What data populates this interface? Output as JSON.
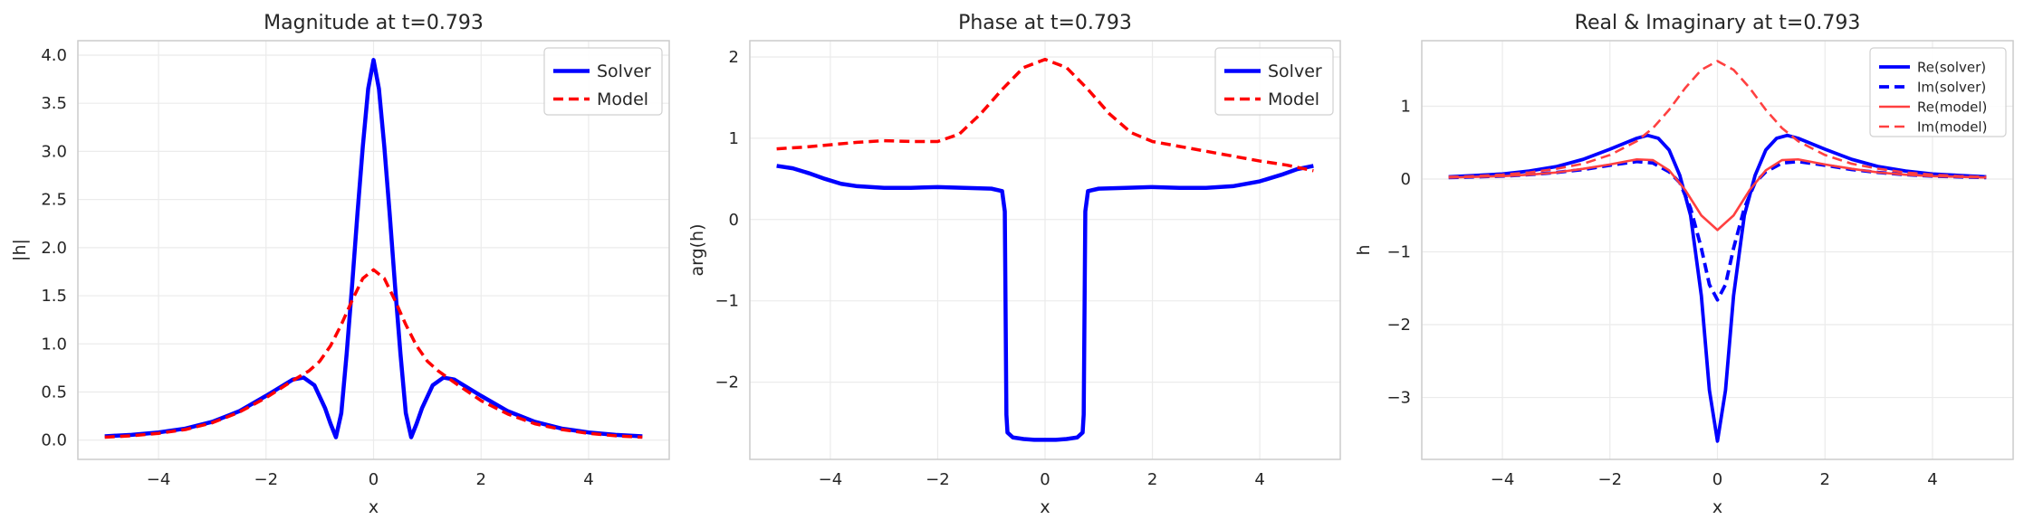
{
  "chart_data": [
    {
      "type": "line",
      "title": "Magnitude at t=0.793",
      "xlabel": "x",
      "ylabel": "|h|",
      "xlim": [
        -5.5,
        5.5
      ],
      "ylim": [
        -0.2,
        4.15
      ],
      "xticks": [
        -4,
        -2,
        0,
        2,
        4
      ],
      "xtick_labels": [
        "−4",
        "−2",
        "0",
        "2",
        "4"
      ],
      "yticks": [
        0.0,
        0.5,
        1.0,
        1.5,
        2.0,
        2.5,
        3.0,
        3.5,
        4.0
      ],
      "ytick_labels": [
        "0.0",
        "0.5",
        "1.0",
        "1.5",
        "2.0",
        "2.5",
        "3.0",
        "3.5",
        "4.0"
      ],
      "grid": true,
      "legend_position": "top-right",
      "series": [
        {
          "name": "Solver",
          "color": "#0000ff",
          "style": "solid",
          "width": 4.5,
          "x": [
            -5,
            -4.5,
            -4,
            -3.5,
            -3,
            -2.5,
            -2,
            -1.5,
            -1.3,
            -1.1,
            -0.9,
            -0.8,
            -0.7,
            -0.6,
            -0.5,
            -0.4,
            -0.3,
            -0.2,
            -0.1,
            0,
            0.1,
            0.2,
            0.3,
            0.4,
            0.5,
            0.6,
            0.7,
            0.8,
            0.9,
            1.1,
            1.3,
            1.5,
            2,
            2.5,
            3,
            3.5,
            4,
            4.5,
            5
          ],
          "y": [
            0.04,
            0.055,
            0.08,
            0.12,
            0.19,
            0.3,
            0.46,
            0.63,
            0.65,
            0.57,
            0.33,
            0.17,
            0.03,
            0.28,
            0.9,
            1.6,
            2.35,
            3.05,
            3.65,
            3.95,
            3.65,
            3.05,
            2.35,
            1.6,
            0.9,
            0.28,
            0.03,
            0.17,
            0.33,
            0.57,
            0.65,
            0.63,
            0.46,
            0.3,
            0.19,
            0.12,
            0.08,
            0.055,
            0.04
          ]
        },
        {
          "name": "Model",
          "color": "#ff0000",
          "style": "dashed",
          "width": 3.5,
          "x": [
            -5,
            -4.5,
            -4,
            -3.5,
            -3,
            -2.5,
            -2,
            -1.5,
            -1.2,
            -1,
            -0.8,
            -0.6,
            -0.4,
            -0.2,
            0,
            0.2,
            0.4,
            0.6,
            0.8,
            1,
            1.2,
            1.5,
            2,
            2.5,
            3,
            3.5,
            4,
            4.5,
            5
          ],
          "y": [
            0.03,
            0.045,
            0.07,
            0.11,
            0.18,
            0.29,
            0.44,
            0.62,
            0.72,
            0.82,
            0.98,
            1.2,
            1.45,
            1.68,
            1.77,
            1.68,
            1.45,
            1.2,
            0.98,
            0.82,
            0.72,
            0.6,
            0.41,
            0.27,
            0.17,
            0.11,
            0.07,
            0.045,
            0.03
          ]
        }
      ]
    },
    {
      "type": "line",
      "title": "Phase at t=0.793",
      "xlabel": "x",
      "ylabel": "arg(h)",
      "xlim": [
        -5.5,
        5.5
      ],
      "ylim": [
        -2.95,
        2.2
      ],
      "xticks": [
        -4,
        -2,
        0,
        2,
        4
      ],
      "xtick_labels": [
        "−4",
        "−2",
        "0",
        "2",
        "4"
      ],
      "yticks": [
        -2,
        -1,
        0,
        1,
        2
      ],
      "ytick_labels": [
        "−2",
        "−1",
        "0",
        "1",
        "2"
      ],
      "grid": true,
      "legend_position": "top-right",
      "series": [
        {
          "name": "Solver",
          "color": "#0000ff",
          "style": "solid",
          "width": 4.5,
          "x": [
            -5,
            -4.7,
            -4.4,
            -4.1,
            -3.8,
            -3.5,
            -3,
            -2.5,
            -2,
            -1.5,
            -1,
            -0.8,
            -0.75,
            -0.72,
            -0.7,
            -0.6,
            -0.4,
            -0.2,
            0,
            0.2,
            0.4,
            0.6,
            0.7,
            0.72,
            0.75,
            0.8,
            1,
            1.5,
            2,
            2.5,
            3,
            3.5,
            4,
            4.4,
            4.7,
            5
          ],
          "y": [
            0.66,
            0.63,
            0.57,
            0.5,
            0.44,
            0.41,
            0.39,
            0.39,
            0.4,
            0.39,
            0.38,
            0.35,
            0.1,
            -2.4,
            -2.62,
            -2.68,
            -2.7,
            -2.71,
            -2.71,
            -2.71,
            -2.7,
            -2.68,
            -2.62,
            -2.4,
            0.1,
            0.35,
            0.38,
            0.39,
            0.4,
            0.39,
            0.39,
            0.41,
            0.47,
            0.55,
            0.62,
            0.66
          ]
        },
        {
          "name": "Model",
          "color": "#ff0000",
          "style": "dashed",
          "width": 3.5,
          "x": [
            -5,
            -4.5,
            -4,
            -3.5,
            -3,
            -2.5,
            -2,
            -1.6,
            -1.2,
            -0.8,
            -0.4,
            0,
            0.4,
            0.8,
            1.2,
            1.6,
            2,
            2.5,
            3,
            3.5,
            4,
            4.5,
            5
          ],
          "y": [
            0.87,
            0.89,
            0.92,
            0.95,
            0.97,
            0.96,
            0.96,
            1.05,
            1.3,
            1.6,
            1.87,
            1.97,
            1.87,
            1.6,
            1.3,
            1.07,
            0.96,
            0.9,
            0.84,
            0.78,
            0.72,
            0.67,
            0.6
          ]
        }
      ]
    },
    {
      "type": "line",
      "title": "Real & Imaginary at t=0.793",
      "xlabel": "x",
      "ylabel": "h",
      "xlim": [
        -5.5,
        5.5
      ],
      "ylim": [
        -3.85,
        1.9
      ],
      "xticks": [
        -4,
        -2,
        0,
        2,
        4
      ],
      "xtick_labels": [
        "−4",
        "−2",
        "0",
        "2",
        "4"
      ],
      "yticks": [
        -3,
        -2,
        -1,
        0,
        1
      ],
      "ytick_labels": [
        "−3",
        "−2",
        "−1",
        "0",
        "1"
      ],
      "grid": true,
      "legend_position": "top-right",
      "series": [
        {
          "name": "Re(solver)",
          "color": "#0000ff",
          "style": "solid",
          "width": 3.8,
          "x": [
            -5,
            -4.5,
            -4,
            -3.5,
            -3,
            -2.5,
            -2,
            -1.5,
            -1.3,
            -1.1,
            -0.9,
            -0.7,
            -0.5,
            -0.3,
            -0.15,
            0,
            0.15,
            0.3,
            0.5,
            0.7,
            0.9,
            1.1,
            1.3,
            1.5,
            2,
            2.5,
            3,
            3.5,
            4,
            4.5,
            5
          ],
          "y": [
            0.03,
            0.05,
            0.07,
            0.11,
            0.17,
            0.27,
            0.41,
            0.56,
            0.6,
            0.56,
            0.4,
            0.05,
            -0.5,
            -1.6,
            -2.9,
            -3.6,
            -2.9,
            -1.6,
            -0.5,
            0.05,
            0.4,
            0.56,
            0.6,
            0.56,
            0.41,
            0.27,
            0.17,
            0.11,
            0.07,
            0.05,
            0.03
          ]
        },
        {
          "name": "Im(solver)",
          "color": "#0000ff",
          "style": "dashed",
          "width": 3.8,
          "x": [
            -5,
            -4.5,
            -4,
            -3.5,
            -3,
            -2.5,
            -2,
            -1.5,
            -1.2,
            -0.9,
            -0.7,
            -0.5,
            -0.3,
            -0.15,
            0,
            0.15,
            0.3,
            0.5,
            0.7,
            0.9,
            1.2,
            1.5,
            2,
            2.5,
            3,
            3.5,
            4,
            4.5,
            5
          ],
          "y": [
            0.02,
            0.03,
            0.04,
            0.06,
            0.09,
            0.13,
            0.19,
            0.24,
            0.22,
            0.1,
            -0.05,
            -0.4,
            -0.95,
            -1.45,
            -1.66,
            -1.45,
            -0.95,
            -0.4,
            -0.05,
            0.1,
            0.22,
            0.24,
            0.19,
            0.13,
            0.09,
            0.06,
            0.04,
            0.03,
            0.02
          ]
        },
        {
          "name": "Re(model)",
          "color": "#ff4040",
          "style": "solid",
          "width": 2.6,
          "x": [
            -5,
            -4.5,
            -4,
            -3.5,
            -3,
            -2.5,
            -2,
            -1.5,
            -1.2,
            -0.9,
            -0.6,
            -0.3,
            0,
            0.3,
            0.6,
            0.9,
            1.2,
            1.5,
            2,
            2.5,
            3,
            3.5,
            4,
            4.5,
            5
          ],
          "y": [
            0.02,
            0.03,
            0.04,
            0.06,
            0.09,
            0.14,
            0.2,
            0.27,
            0.26,
            0.12,
            -0.15,
            -0.5,
            -0.7,
            -0.5,
            -0.15,
            0.12,
            0.26,
            0.27,
            0.2,
            0.14,
            0.09,
            0.06,
            0.04,
            0.03,
            0.02
          ]
        },
        {
          "name": "Im(model)",
          "color": "#ff4040",
          "style": "dashed",
          "width": 2.6,
          "x": [
            -5,
            -4.5,
            -4,
            -3.5,
            -3,
            -2.5,
            -2,
            -1.5,
            -1.2,
            -0.9,
            -0.6,
            -0.3,
            0,
            0.3,
            0.6,
            0.9,
            1.2,
            1.5,
            2,
            2.5,
            3,
            3.5,
            4,
            4.5,
            5
          ],
          "y": [
            0.03,
            0.04,
            0.06,
            0.09,
            0.14,
            0.21,
            0.33,
            0.52,
            0.7,
            0.95,
            1.25,
            1.5,
            1.62,
            1.5,
            1.25,
            0.95,
            0.7,
            0.52,
            0.33,
            0.21,
            0.14,
            0.09,
            0.06,
            0.04,
            0.03
          ]
        }
      ]
    }
  ]
}
